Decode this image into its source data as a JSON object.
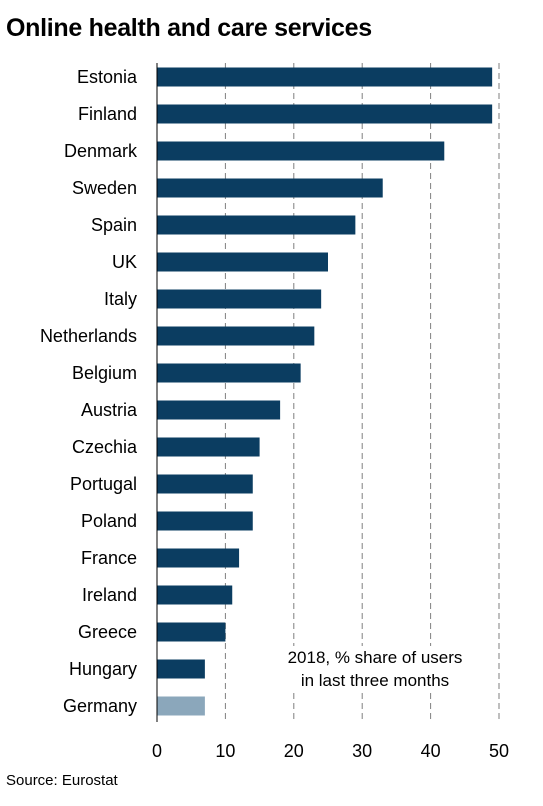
{
  "title": "Online health and care services",
  "annotation": [
    "2018, % share of users",
    "in last three months"
  ],
  "source": "Source: Eurostat",
  "colors": {
    "bar": "#0b3d61",
    "highlight": "#8ba7bb",
    "grid": "#7f7f7f",
    "axis": "#000000"
  },
  "chart_data": {
    "type": "bar",
    "orientation": "horizontal",
    "title": "Online health and care services",
    "categories": [
      "Estonia",
      "Finland",
      "Denmark",
      "Sweden",
      "Spain",
      "UK",
      "Italy",
      "Netherlands",
      "Belgium",
      "Austria",
      "Czechia",
      "Portugal",
      "Poland",
      "France",
      "Ireland",
      "Greece",
      "Hungary",
      "Germany"
    ],
    "values": [
      49,
      49,
      42,
      33,
      29,
      25,
      24,
      23,
      21,
      18,
      15,
      14,
      14,
      12,
      11,
      10,
      7,
      7
    ],
    "highlight": [
      "Germany"
    ],
    "xlim": [
      0,
      50
    ],
    "xticks": [
      0,
      10,
      20,
      30,
      40,
      50
    ],
    "grid": "vertical dashed",
    "legend": "none"
  }
}
